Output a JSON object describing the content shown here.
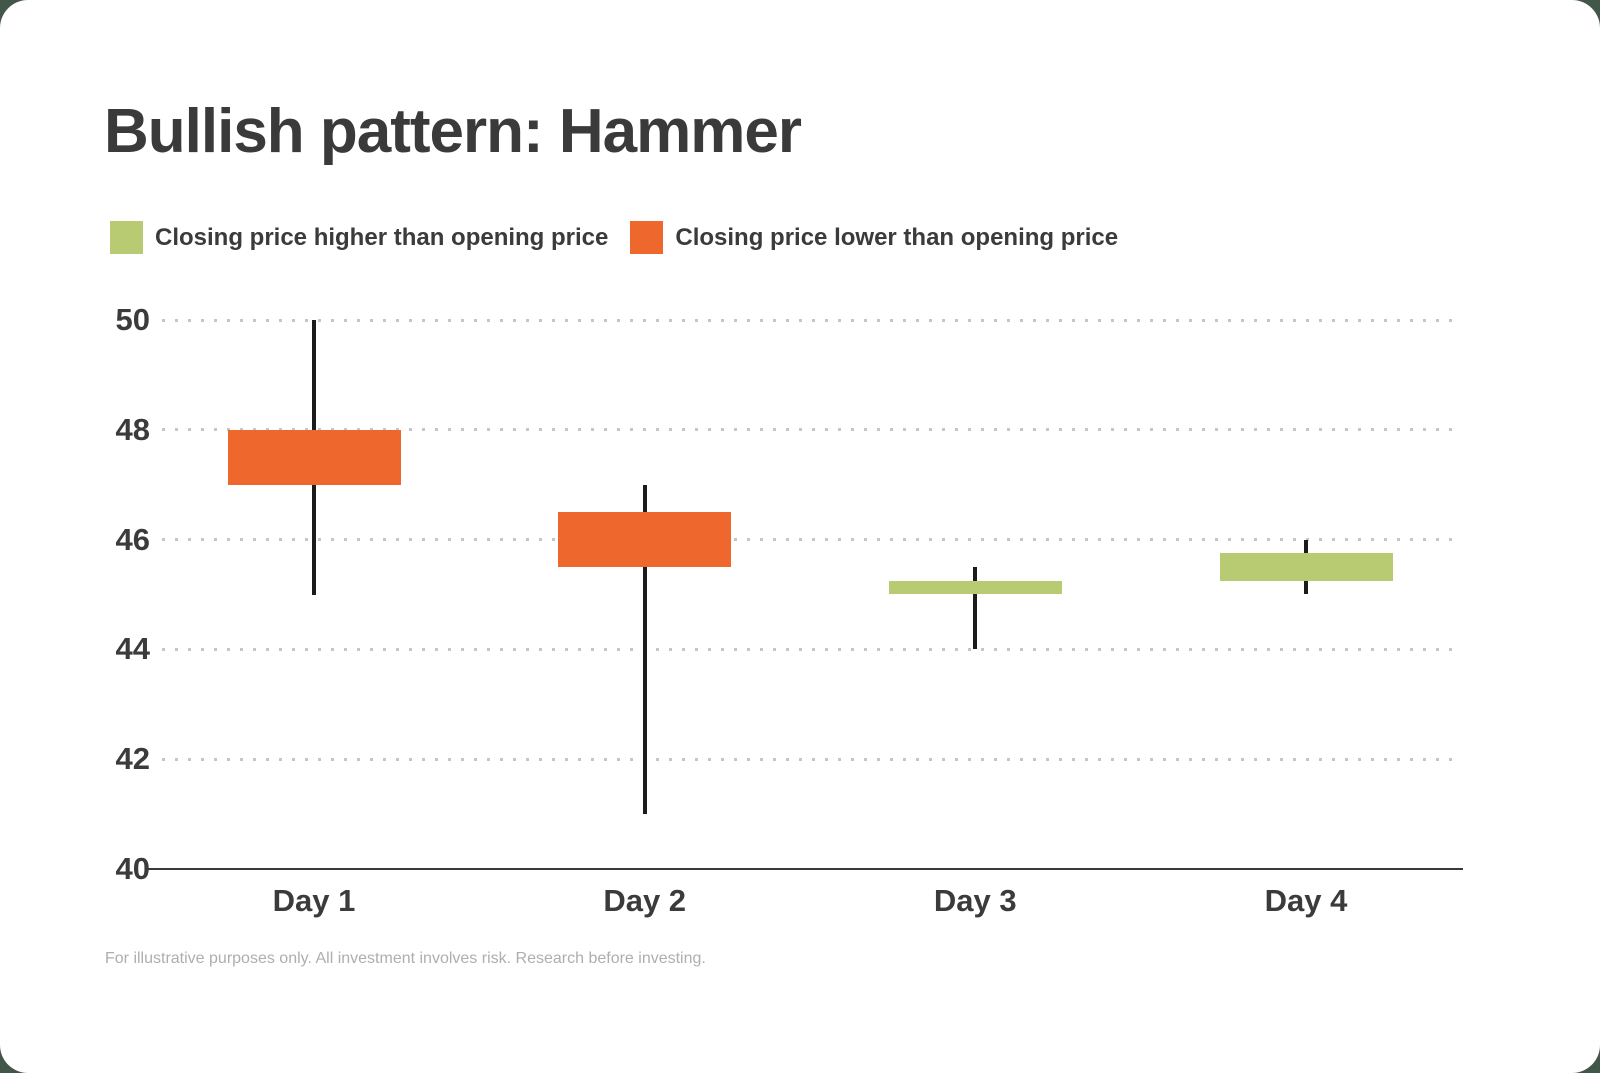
{
  "page": {
    "title": "Bullish pattern: Hammer",
    "footnote": "For illustrative purposes only. All investment involves risk. Research before investing."
  },
  "legend": [
    {
      "label": "Closing price higher than opening price",
      "color": "#B8CB72",
      "meaning": "bullish-up-candle"
    },
    {
      "label": "Closing price lower than opening price",
      "color": "#EE672D",
      "meaning": "bearish-down-candle"
    }
  ],
  "chart_data": {
    "type": "candlestick",
    "title": "Bullish pattern: Hammer",
    "categories": [
      "Day 1",
      "Day 2",
      "Day 3",
      "Day 4"
    ],
    "series": [
      {
        "name": "Day 1",
        "open": 48,
        "close": 47,
        "high": 50,
        "low": 45,
        "direction": "down"
      },
      {
        "name": "Day 2",
        "open": 46.5,
        "close": 45.5,
        "high": 47,
        "low": 41,
        "direction": "down"
      },
      {
        "name": "Day 3",
        "open": 45,
        "close": 45.25,
        "high": 45.5,
        "low": 44,
        "direction": "up"
      },
      {
        "name": "Day 4",
        "open": 45.25,
        "close": 45.75,
        "high": 46,
        "low": 45,
        "direction": "up"
      }
    ],
    "xlabel": "",
    "ylabel": "",
    "ylim": [
      40,
      50
    ],
    "yticks": [
      40,
      42,
      44,
      46,
      48,
      50
    ],
    "grid": "horizontal dotted lines at each y tick, solid baseline at 40",
    "legend_position": "top-left above plot",
    "up_color": "#B8CB72",
    "down_color": "#EE672D",
    "wick_color": "#1c1c1c",
    "grid_color": "#c6c6c6",
    "axis_color": "#3a3a3a",
    "label_color": "#3b3b3b",
    "background_color": "#ffffff"
  }
}
